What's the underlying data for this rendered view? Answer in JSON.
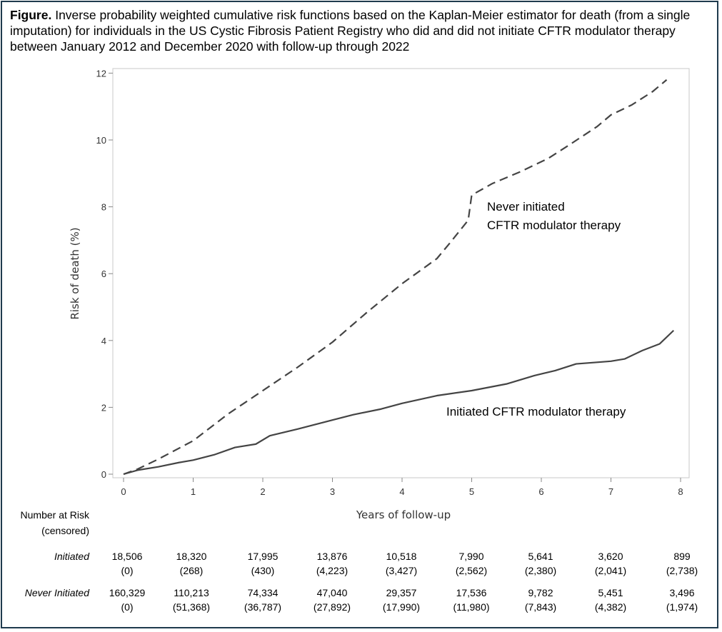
{
  "caption": {
    "lead": "Figure.",
    "text": " Inverse probability weighted cumulative risk functions based on the Kaplan-Meier estimator for death (from a single imputation) for individuals in the US Cystic Fibrosis Patient Registry who did and did not initiate CFTR modulator therapy between January 2012 and December 2020 with follow-up through 2022"
  },
  "chart_data": {
    "type": "line",
    "xlabel": "Years of follow-up",
    "ylabel": "Risk of death (%)",
    "xlim": [
      0,
      8.1
    ],
    "ylim": [
      0,
      12.1
    ],
    "xticks": [
      0,
      1,
      2,
      3,
      4,
      5,
      6,
      7,
      8
    ],
    "yticks": [
      0,
      2,
      4,
      6,
      8,
      10,
      12
    ],
    "grid": false,
    "series": [
      {
        "name": "Initiated CFTR modulator therapy",
        "style": "solid",
        "x": [
          0,
          0.2,
          0.5,
          0.8,
          1.0,
          1.3,
          1.6,
          1.9,
          2.1,
          2.5,
          3.0,
          3.3,
          3.7,
          4.0,
          4.5,
          5.0,
          5.5,
          5.9,
          6.2,
          6.5,
          7.0,
          7.2,
          7.45,
          7.7,
          7.9
        ],
        "y": [
          0,
          0.12,
          0.22,
          0.35,
          0.42,
          0.58,
          0.8,
          0.9,
          1.15,
          1.35,
          1.62,
          1.78,
          1.95,
          2.12,
          2.35,
          2.5,
          2.7,
          2.95,
          3.1,
          3.3,
          3.38,
          3.45,
          3.7,
          3.9,
          4.3
        ]
      },
      {
        "name": "Never initiated CFTR modulator therapy",
        "style": "dashed",
        "x": [
          0,
          0.2,
          0.5,
          1.0,
          1.5,
          2.0,
          2.5,
          3.0,
          3.5,
          4.0,
          4.5,
          4.7,
          4.95,
          5.0,
          5.3,
          5.7,
          6.1,
          6.4,
          6.8,
          7.0,
          7.3,
          7.6,
          7.8
        ],
        "y": [
          0,
          0.15,
          0.45,
          1.0,
          1.8,
          2.5,
          3.2,
          3.95,
          4.85,
          5.7,
          6.45,
          6.95,
          7.6,
          8.35,
          8.7,
          9.05,
          9.45,
          9.85,
          10.4,
          10.75,
          11.05,
          11.45,
          11.8
        ]
      }
    ],
    "annotations": {
      "never_line1": "Never initiated",
      "never_line2": "CFTR modulator therapy",
      "initiated": "Initiated CFTR modulator therapy"
    }
  },
  "risk_table": {
    "header_line1": "Number at Risk",
    "header_line2": "(censored)",
    "rows": [
      {
        "label": "Initiated",
        "at_risk": [
          "18,506",
          "18,320",
          "17,995",
          "13,876",
          "10,518",
          "7,990",
          "5,641",
          "3,620",
          "899"
        ],
        "censored": [
          "(0)",
          "(268)",
          "(430)",
          "(4,223)",
          "(3,427)",
          "(2,562)",
          "(2,380)",
          "(2,041)",
          "(2,738)"
        ]
      },
      {
        "label": "Never Initiated",
        "at_risk": [
          "160,329",
          "110,213",
          "74,334",
          "47,040",
          "29,357",
          "17,536",
          "9,782",
          "5,451",
          "3,496"
        ],
        "censored": [
          "(0)",
          "(51,368)",
          "(36,787)",
          "(27,892)",
          "(17,990)",
          "(11,980)",
          "(7,843)",
          "(4,382)",
          "(1,974)"
        ]
      }
    ]
  }
}
